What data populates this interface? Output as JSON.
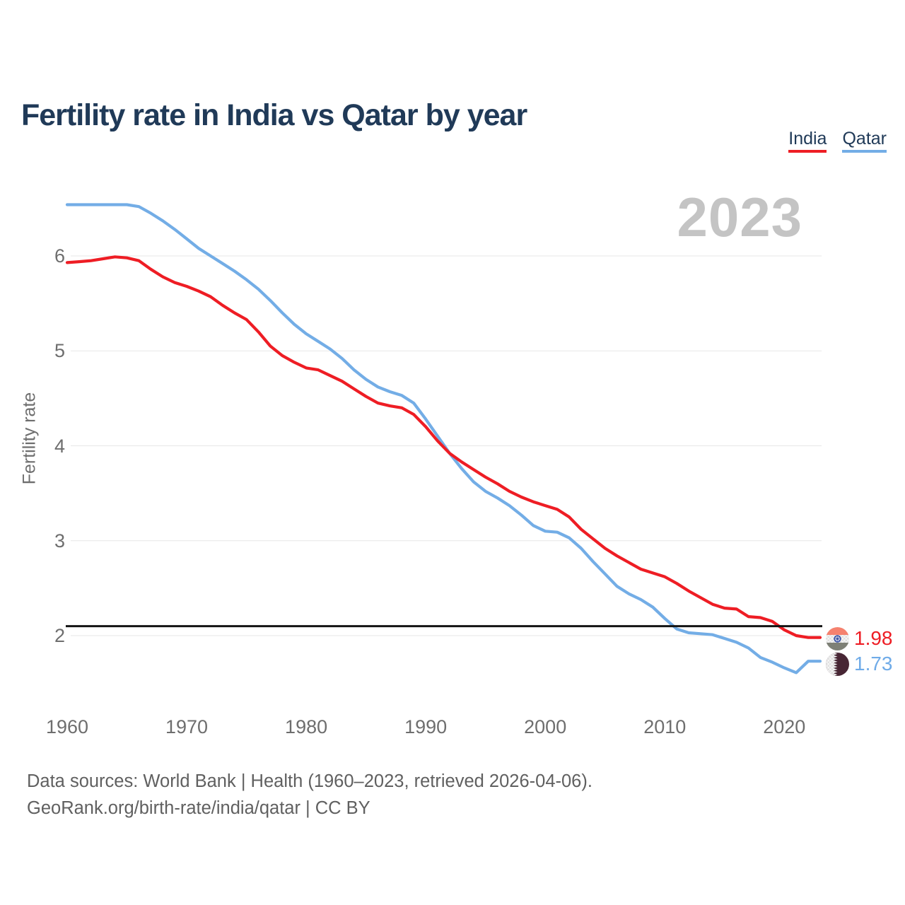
{
  "page": {
    "title": "Fertility rate in India vs Qatar by year",
    "watermark": "2023",
    "footer_line1": "Data sources: World Bank | Health (1960–2023, retrieved 2026-04-06).",
    "footer_line2": "GeoRank.org/birth-rate/india/qatar | CC BY"
  },
  "legend": {
    "items": [
      {
        "label": "India",
        "color": "#ee1d24"
      },
      {
        "label": "Qatar",
        "color": "#73ade6"
      }
    ]
  },
  "end_labels": {
    "india": {
      "value": "1.98",
      "color": "#ee1d24",
      "flag": "india-flag"
    },
    "qatar": {
      "value": "1.73",
      "color": "#6fabe8",
      "flag": "qatar-flag"
    }
  },
  "chart_data": {
    "type": "line",
    "title": "Fertility rate in India vs Qatar by year",
    "xlabel": "",
    "ylabel": "Fertility rate",
    "grid": "horizontal",
    "legend_position": "top-right",
    "xlim": [
      1960,
      2023
    ],
    "ylim": [
      1.55,
      6.7
    ],
    "x_ticks": [
      1960,
      1970,
      1980,
      1990,
      2000,
      2010,
      2020
    ],
    "y_ticks": [
      2,
      3,
      4,
      5,
      6
    ],
    "reference_line": {
      "value": 2.1,
      "color": "#141414"
    },
    "x": [
      1960,
      1961,
      1962,
      1963,
      1964,
      1965,
      1966,
      1967,
      1968,
      1969,
      1970,
      1971,
      1972,
      1973,
      1974,
      1975,
      1976,
      1977,
      1978,
      1979,
      1980,
      1981,
      1982,
      1983,
      1984,
      1985,
      1986,
      1987,
      1988,
      1989,
      1990,
      1991,
      1992,
      1993,
      1994,
      1995,
      1996,
      1997,
      1998,
      1999,
      2000,
      2001,
      2002,
      2003,
      2004,
      2005,
      2006,
      2007,
      2008,
      2009,
      2010,
      2011,
      2012,
      2013,
      2014,
      2015,
      2016,
      2017,
      2018,
      2019,
      2020,
      2021,
      2022,
      2023
    ],
    "series": [
      {
        "name": "India",
        "color": "#ee1d24",
        "final_value": 1.98,
        "values": [
          5.93,
          5.94,
          5.95,
          5.97,
          5.99,
          5.98,
          5.95,
          5.86,
          5.78,
          5.72,
          5.68,
          5.63,
          5.57,
          5.48,
          5.4,
          5.33,
          5.2,
          5.05,
          4.95,
          4.88,
          4.82,
          4.8,
          4.74,
          4.68,
          4.6,
          4.52,
          4.45,
          4.42,
          4.4,
          4.33,
          4.2,
          4.05,
          3.92,
          3.83,
          3.75,
          3.67,
          3.6,
          3.52,
          3.46,
          3.41,
          3.37,
          3.33,
          3.25,
          3.12,
          3.02,
          2.92,
          2.84,
          2.77,
          2.7,
          2.66,
          2.62,
          2.55,
          2.47,
          2.4,
          2.33,
          2.29,
          2.28,
          2.2,
          2.19,
          2.15,
          2.06,
          2.0,
          1.98,
          1.98
        ]
      },
      {
        "name": "Qatar",
        "color": "#73ade6",
        "final_value": 1.73,
        "values": [
          6.54,
          6.54,
          6.54,
          6.54,
          6.54,
          6.54,
          6.52,
          6.45,
          6.37,
          6.28,
          6.18,
          6.08,
          6.0,
          5.92,
          5.84,
          5.75,
          5.65,
          5.53,
          5.4,
          5.28,
          5.18,
          5.1,
          5.02,
          4.92,
          4.8,
          4.7,
          4.62,
          4.57,
          4.53,
          4.45,
          4.28,
          4.1,
          3.92,
          3.76,
          3.62,
          3.52,
          3.45,
          3.37,
          3.27,
          3.16,
          3.1,
          3.09,
          3.03,
          2.92,
          2.78,
          2.65,
          2.52,
          2.44,
          2.38,
          2.3,
          2.18,
          2.07,
          2.03,
          2.02,
          2.01,
          1.97,
          1.93,
          1.87,
          1.77,
          1.72,
          1.66,
          1.61,
          1.73,
          1.73
        ]
      }
    ]
  }
}
